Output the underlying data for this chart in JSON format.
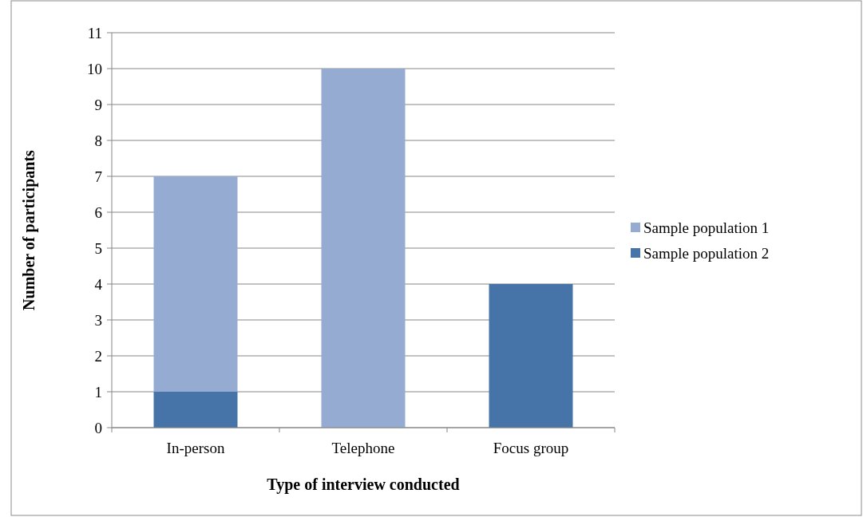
{
  "chart_data": {
    "type": "bar",
    "stacked": true,
    "xlabel": "Type of interview conducted",
    "ylabel": "Number of participants",
    "categories": [
      "In-person",
      "Telephone",
      "Focus group"
    ],
    "series": [
      {
        "name": "Sample population 2",
        "color": "#4674a8",
        "values": [
          1,
          0,
          4
        ]
      },
      {
        "name": "Sample population 1",
        "color": "#95abd2",
        "values": [
          6,
          10,
          0
        ]
      }
    ],
    "ylim": [
      0,
      11
    ],
    "yticks": [
      0,
      1,
      2,
      3,
      4,
      5,
      6,
      7,
      8,
      9,
      10,
      11
    ],
    "grid": "y",
    "legend": "right"
  }
}
